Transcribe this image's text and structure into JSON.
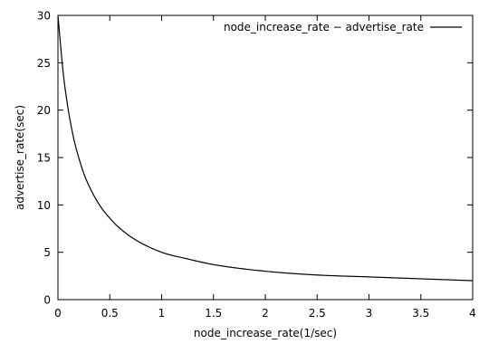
{
  "chart_data": {
    "type": "line",
    "title": "",
    "xlabel": "node_increase_rate(1/sec)",
    "ylabel": "advertise_rate(sec)",
    "xlim": [
      0,
      4
    ],
    "ylim": [
      0,
      30
    ],
    "xticks": [
      0,
      0.5,
      1,
      1.5,
      2,
      2.5,
      3,
      3.5,
      4
    ],
    "yticks": [
      0,
      5,
      10,
      15,
      20,
      25,
      30
    ],
    "xtick_labels": [
      "0",
      "0.5",
      "1",
      "1.5",
      "2",
      "2.5",
      "3",
      "3.5",
      "4"
    ],
    "ytick_labels": [
      "0",
      "5",
      "10",
      "15",
      "20",
      "25",
      "30"
    ],
    "grid": false,
    "legend_position": "top-right",
    "series": [
      {
        "name": "node_increase_rate − advertise_rate",
        "color": "#000000",
        "x": [
          0,
          0.05,
          0.1,
          0.15,
          0.2,
          0.25,
          0.3,
          0.4,
          0.5,
          0.6,
          0.75,
          1,
          1.25,
          1.5,
          2,
          2.5,
          3,
          3.5,
          4
        ],
        "y": [
          30,
          24.0,
          20.0,
          17.1,
          15.0,
          13.3,
          12.0,
          10.0,
          8.6,
          7.5,
          6.3,
          5.0,
          4.3,
          3.7,
          3.0,
          2.6,
          2.4,
          2.2,
          2.0
        ]
      }
    ]
  }
}
